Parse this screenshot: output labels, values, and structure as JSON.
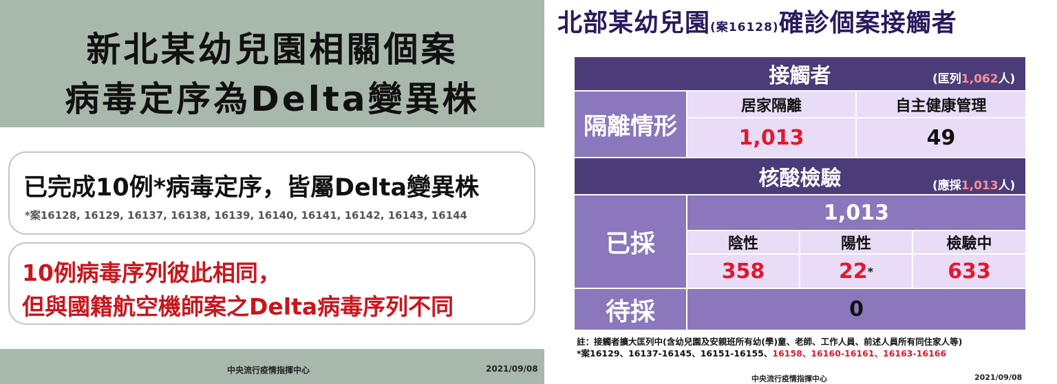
{
  "left_slide": {
    "title_line1": "新北某幼兒園相關個案",
    "title_line2": "病毒定序為Delta變異株",
    "box1_main": "已完成10例*病毒定序，皆屬Delta變異株",
    "box1_sub": "*案16128, 16129, 16137, 16138, 16139, 16140, 16141, 16142, 16143, 16144",
    "box2_line1": "10例病毒序列彼此相同，",
    "box2_line2": "但與國籍航空機師案之Delta病毒序列不同",
    "footer_org": "中央流行疫情指揮中心",
    "footer_date": "2021/09/08"
  },
  "right_slide": {
    "title_main": "北部某幼兒園",
    "title_case": "(案16128)",
    "title_rest": "確診個案接觸者",
    "contacts_header": "接觸者",
    "contacts_note_pre": "(匡列",
    "contacts_note_num": "1,062",
    "contacts_note_post": "人)",
    "isolation_label": "隔離情形",
    "home_quarantine_label": "居家隔離",
    "self_health_label": "自主健康管理",
    "home_quarantine_value": "1,013",
    "self_health_value": "49",
    "pcr_header": "核酸檢驗",
    "pcr_note_pre": "(應採",
    "pcr_note_num": "1,013",
    "pcr_note_post": "人)",
    "sampled_label": "已採",
    "sampled_total": "1,013",
    "negative_label": "陰性",
    "positive_label": "陽性",
    "testing_label": "檢驗中",
    "negative_value": "358",
    "positive_value": "22",
    "positive_mark": "*",
    "testing_value": "633",
    "pending_label": "待採",
    "pending_value": "0",
    "note_line1": "註：接觸者擴大匡列中(含幼兒園及安親班所有幼(學)童、老師、工作人員、前述人員所有同住家人等)",
    "note_line2_prefix": "*案16129、16137-16145、16151-16155、",
    "note_line2_red": "16158、16160-16161、16163-16166",
    "footer_org": "中央流行疫情指揮中心",
    "footer_date": "2021/09/08"
  },
  "colors": {
    "header_purple": "#4b3c79",
    "side_purple": "#8b77bb",
    "cell_lavender": "#e8dcf6",
    "highlight_red": "#e3182d",
    "left_band": "#a9b8ad",
    "left_red_text": "#c8161d"
  }
}
